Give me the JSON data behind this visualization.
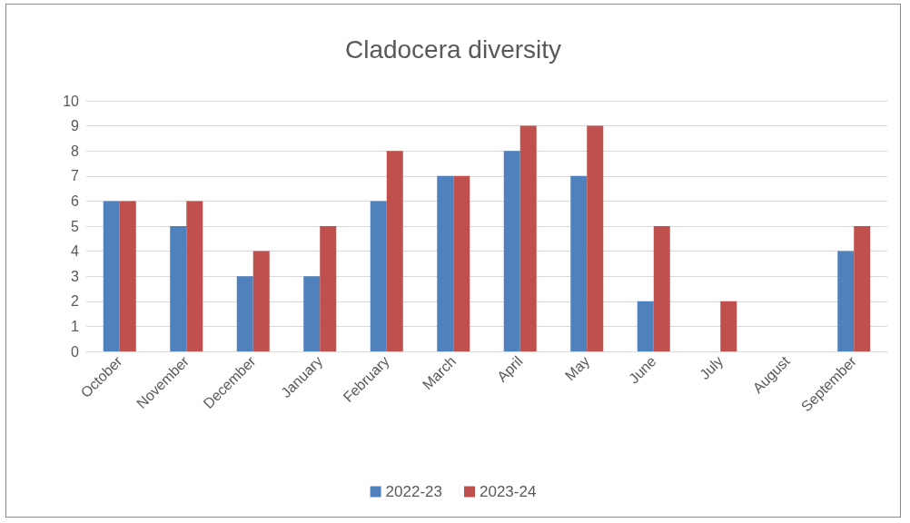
{
  "chart_data": {
    "type": "bar",
    "title": "Cladocera diversity",
    "categories": [
      "October",
      "November",
      "December",
      "January",
      "February",
      "March",
      "April",
      "May",
      "June",
      "July",
      "August",
      "September"
    ],
    "series": [
      {
        "name": "2022-23",
        "color": "#4f81bd",
        "values": [
          6,
          5,
          3,
          3,
          6,
          7,
          8,
          7,
          2,
          0,
          0,
          4
        ]
      },
      {
        "name": "2023-24",
        "color": "#c0504d",
        "values": [
          6,
          6,
          4,
          5,
          8,
          7,
          9,
          9,
          5,
          2,
          0,
          5
        ]
      }
    ],
    "ylim": [
      0,
      10
    ],
    "yticks": [
      0,
      1,
      2,
      3,
      4,
      5,
      6,
      7,
      8,
      9,
      10
    ],
    "grid": "y",
    "legend": "bottom"
  }
}
